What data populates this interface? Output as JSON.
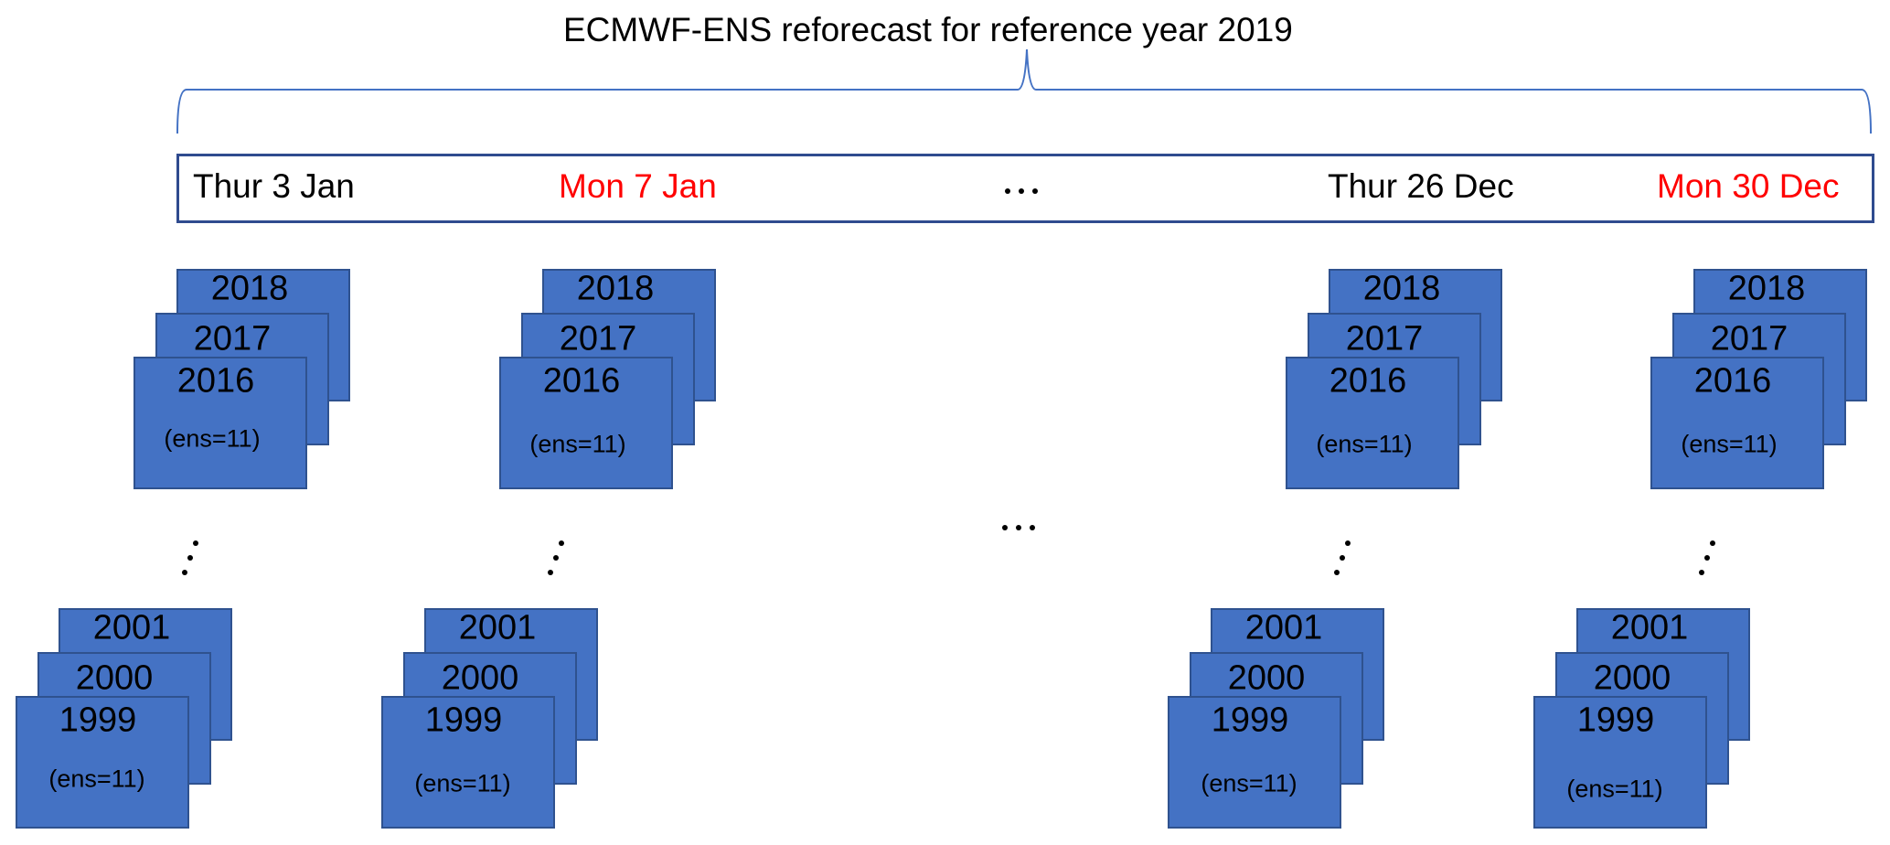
{
  "title": "ECMWF-ENS reforecast for reference year 2019",
  "colors": {
    "card_fill": "#4472C4",
    "card_border": "#2F528F",
    "highlight_date": "#FF0000",
    "normal_date": "#000000",
    "brace": "#4472C4",
    "box_border": "#2F4B8F"
  },
  "dates": [
    {
      "label": "Thur 3 Jan",
      "color": "#000000"
    },
    {
      "label": "Mon 7 Jan",
      "color": "#FF0000"
    },
    {
      "label": "Thur 26 Dec",
      "color": "#000000"
    },
    {
      "label": "Mon 30 Dec",
      "color": "#FF0000"
    }
  ],
  "stacks": [
    {
      "top_years": [
        "2018",
        "2017",
        "2016"
      ],
      "bottom_years": [
        "2001",
        "2000",
        "1999"
      ],
      "ens": "(ens=11)"
    },
    {
      "top_years": [
        "2018",
        "2017",
        "2016"
      ],
      "bottom_years": [
        "2001",
        "2000",
        "1999"
      ],
      "ens": "(ens=11)"
    },
    {
      "top_years": [
        "2018",
        "2017",
        "2016"
      ],
      "bottom_years": [
        "2001",
        "2000",
        "1999"
      ],
      "ens": "(ens=11)"
    },
    {
      "top_years": [
        "2018",
        "2017",
        "2016"
      ],
      "bottom_years": [
        "2001",
        "2000",
        "1999"
      ],
      "ens": "(ens=11)"
    }
  ]
}
